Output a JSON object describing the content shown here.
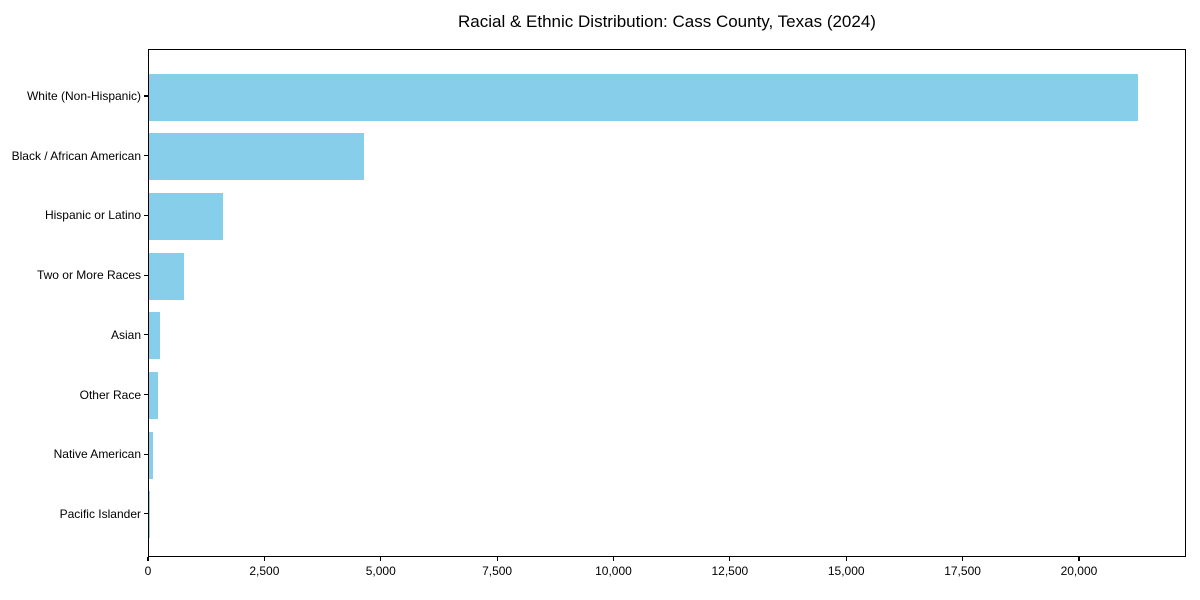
{
  "chart_data": {
    "type": "bar",
    "orientation": "horizontal",
    "title": "Racial & Ethnic Distribution: Cass County, Texas (2024)",
    "categories": [
      "White (Non-Hispanic)",
      "Black / African American",
      "Hispanic or Latino",
      "Two or More Races",
      "Asian",
      "Other Race",
      "Native American",
      "Pacific Islander"
    ],
    "values": [
      21250,
      4620,
      1590,
      750,
      240,
      200,
      90,
      10
    ],
    "xlabel": "",
    "ylabel": "",
    "xlim": [
      0,
      22300
    ],
    "x_ticks": [
      0,
      2500,
      5000,
      7500,
      10000,
      12500,
      15000,
      17500,
      20000
    ],
    "x_tick_labels": [
      "0",
      "2,500",
      "5,000",
      "7,500",
      "10,000",
      "12,500",
      "15,000",
      "17,500",
      "20,000"
    ],
    "bar_color": "#87CEEB",
    "axis_color": "#000000",
    "grid": false,
    "legend": false
  }
}
